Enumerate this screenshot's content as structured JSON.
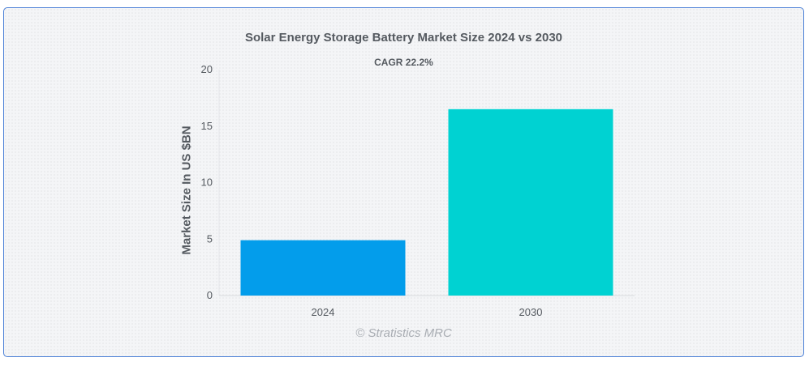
{
  "chart_data": {
    "type": "bar",
    "title": "Solar Energy Storage Battery Market Size 2024 vs 2030",
    "subtitle": "CAGR 22.2%",
    "xlabel": "",
    "ylabel": "Market Size In US $BN",
    "categories": [
      "2024",
      "2030"
    ],
    "values": [
      4.9,
      16.5
    ],
    "colors": [
      "#039deb",
      "#00d2d2"
    ],
    "ylim": [
      0,
      20
    ],
    "yticks": [
      0,
      5,
      10,
      15,
      20
    ],
    "grid": false,
    "legend": "none"
  },
  "watermark": "© Stratistics MRC"
}
